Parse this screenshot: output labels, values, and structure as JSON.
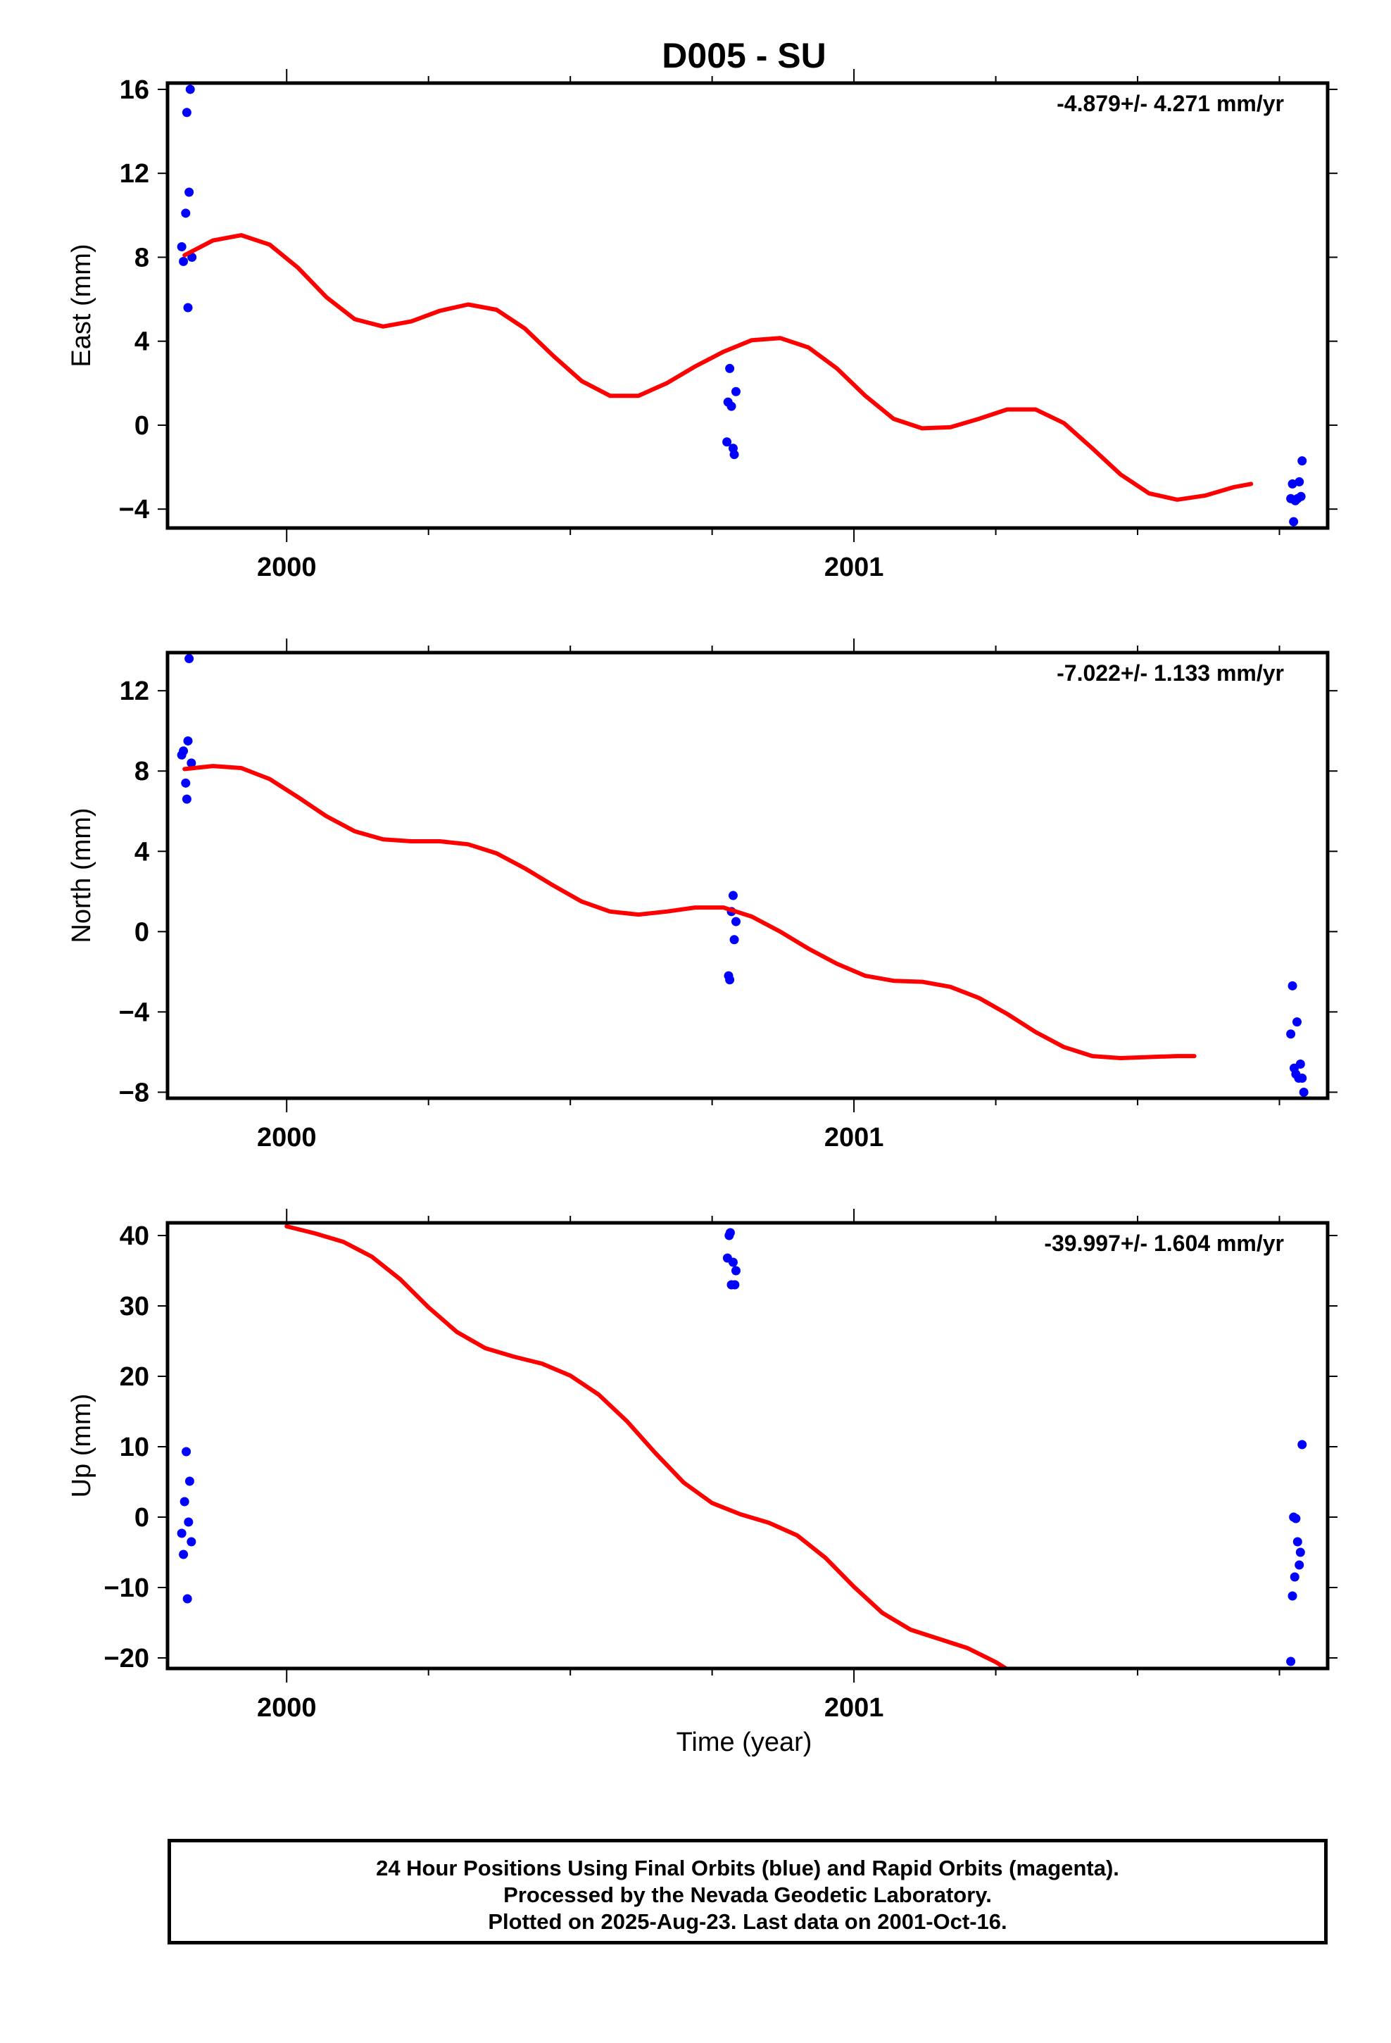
{
  "title": "D005 - SU",
  "xlabel": "Time (year)",
  "footer": {
    "line1": "24 Hour Positions Using Final Orbits (blue) and Rapid Orbits (magenta).",
    "line2": "Processed by the Nevada Geodetic Laboratory.",
    "line3": "Plotted on 2025-Aug-23. Last data on 2001-Oct-16."
  },
  "colors": {
    "data": "#0000ff",
    "model": "#ff0000",
    "axes": "#000000"
  },
  "chart_data": [
    {
      "type": "scatter",
      "ylabel": "East (mm)",
      "rate_text": "-4.879+/- 4.271 mm/yr",
      "xlim": [
        1999.79,
        2001.835
      ],
      "ylim": [
        -4.9,
        16.3
      ],
      "yticks": [
        -4,
        0,
        4,
        8,
        12,
        16
      ],
      "xticks_major": [
        2000,
        2001
      ],
      "points": [
        [
          1999.815,
          8.5
        ],
        [
          1999.818,
          7.8
        ],
        [
          1999.822,
          10.1
        ],
        [
          1999.824,
          14.9
        ],
        [
          1999.826,
          5.6
        ],
        [
          1999.828,
          11.1
        ],
        [
          1999.83,
          16.0
        ],
        [
          1999.833,
          8.0
        ],
        [
          2000.778,
          1.1
        ],
        [
          2000.781,
          2.7
        ],
        [
          2000.784,
          0.9
        ],
        [
          2000.776,
          -0.8
        ],
        [
          2000.787,
          -1.1
        ],
        [
          2000.789,
          -1.4
        ],
        [
          2000.792,
          1.6
        ],
        [
          2001.77,
          -3.5
        ],
        [
          2001.775,
          -4.6
        ],
        [
          2001.778,
          -3.6
        ],
        [
          2001.782,
          -3.5
        ],
        [
          2001.785,
          -2.7
        ],
        [
          2001.788,
          -3.4
        ],
        [
          2001.79,
          -1.7
        ],
        [
          2001.773,
          -2.8
        ]
      ],
      "model": [
        [
          1999.82,
          8.1
        ],
        [
          1999.87,
          8.8
        ],
        [
          1999.92,
          9.05
        ],
        [
          1999.97,
          8.6
        ],
        [
          2000.02,
          7.5
        ],
        [
          2000.07,
          6.1
        ],
        [
          2000.12,
          5.05
        ],
        [
          2000.17,
          4.7
        ],
        [
          2000.22,
          4.95
        ],
        [
          2000.27,
          5.45
        ],
        [
          2000.32,
          5.75
        ],
        [
          2000.37,
          5.5
        ],
        [
          2000.42,
          4.6
        ],
        [
          2000.47,
          3.3
        ],
        [
          2000.52,
          2.1
        ],
        [
          2000.57,
          1.4
        ],
        [
          2000.62,
          1.4
        ],
        [
          2000.67,
          2.0
        ],
        [
          2000.72,
          2.8
        ],
        [
          2000.77,
          3.5
        ],
        [
          2000.82,
          4.05
        ],
        [
          2000.87,
          4.15
        ],
        [
          2000.92,
          3.7
        ],
        [
          2000.97,
          2.7
        ],
        [
          2001.02,
          1.4
        ],
        [
          2001.07,
          0.3
        ],
        [
          2001.12,
          -0.15
        ],
        [
          2001.17,
          -0.1
        ],
        [
          2001.22,
          0.3
        ],
        [
          2001.27,
          0.75
        ],
        [
          2001.32,
          0.75
        ],
        [
          2001.37,
          0.1
        ],
        [
          2001.42,
          -1.1
        ],
        [
          2001.47,
          -2.35
        ],
        [
          2001.52,
          -3.25
        ],
        [
          2001.57,
          -3.55
        ],
        [
          2001.62,
          -3.35
        ],
        [
          2001.67,
          -2.95
        ],
        [
          2001.7,
          -2.8
        ]
      ]
    },
    {
      "type": "scatter",
      "ylabel": "North (mm)",
      "rate_text": "-7.022+/- 1.133 mm/yr",
      "xlim": [
        1999.79,
        2001.835
      ],
      "ylim": [
        -8.3,
        13.9
      ],
      "yticks": [
        -8,
        -4,
        0,
        4,
        8,
        12
      ],
      "xticks_major": [
        2000,
        2001
      ],
      "points": [
        [
          1999.815,
          8.8
        ],
        [
          1999.818,
          9.0
        ],
        [
          1999.822,
          7.4
        ],
        [
          1999.824,
          6.6
        ],
        [
          1999.826,
          9.5
        ],
        [
          1999.828,
          13.6
        ],
        [
          1999.832,
          8.4
        ],
        [
          2000.779,
          -2.2
        ],
        [
          2000.781,
          -2.4
        ],
        [
          2000.784,
          1.0
        ],
        [
          2000.787,
          1.8
        ],
        [
          2000.789,
          -0.4
        ],
        [
          2000.792,
          0.5
        ],
        [
          2001.77,
          -5.1
        ],
        [
          2001.773,
          -2.7
        ],
        [
          2001.776,
          -6.8
        ],
        [
          2001.779,
          -7.1
        ],
        [
          2001.781,
          -4.5
        ],
        [
          2001.784,
          -7.3
        ],
        [
          2001.787,
          -6.6
        ],
        [
          2001.79,
          -7.3
        ],
        [
          2001.793,
          -8.0
        ]
      ],
      "model": [
        [
          1999.82,
          8.1
        ],
        [
          1999.87,
          8.25
        ],
        [
          1999.92,
          8.15
        ],
        [
          1999.97,
          7.6
        ],
        [
          2000.02,
          6.7
        ],
        [
          2000.07,
          5.75
        ],
        [
          2000.12,
          5.0
        ],
        [
          2000.17,
          4.6
        ],
        [
          2000.22,
          4.5
        ],
        [
          2000.27,
          4.5
        ],
        [
          2000.32,
          4.35
        ],
        [
          2000.37,
          3.9
        ],
        [
          2000.42,
          3.15
        ],
        [
          2000.47,
          2.3
        ],
        [
          2000.52,
          1.5
        ],
        [
          2000.57,
          1.0
        ],
        [
          2000.62,
          0.85
        ],
        [
          2000.67,
          1.0
        ],
        [
          2000.72,
          1.2
        ],
        [
          2000.77,
          1.2
        ],
        [
          2000.82,
          0.75
        ],
        [
          2000.87,
          0.0
        ],
        [
          2000.92,
          -0.85
        ],
        [
          2000.97,
          -1.6
        ],
        [
          2001.02,
          -2.2
        ],
        [
          2001.07,
          -2.45
        ],
        [
          2001.12,
          -2.5
        ],
        [
          2001.17,
          -2.75
        ],
        [
          2001.22,
          -3.3
        ],
        [
          2001.27,
          -4.1
        ],
        [
          2001.32,
          -5.0
        ],
        [
          2001.37,
          -5.75
        ],
        [
          2001.42,
          -6.2
        ],
        [
          2001.47,
          -6.3
        ],
        [
          2001.52,
          -6.25
        ],
        [
          2001.57,
          -6.2
        ],
        [
          2001.6,
          -6.2
        ]
      ]
    },
    {
      "type": "scatter",
      "ylabel": "Up (mm)",
      "rate_text": "-39.997+/- 1.604 mm/yr",
      "xlim": [
        1999.79,
        2001.835
      ],
      "ylim": [
        -21.5,
        41.8
      ],
      "yticks": [
        -20,
        -10,
        0,
        10,
        20,
        30,
        40
      ],
      "xticks_major": [
        2000,
        2001
      ],
      "points": [
        [
          1999.815,
          -2.3
        ],
        [
          1999.818,
          -5.3
        ],
        [
          1999.82,
          2.2
        ],
        [
          1999.823,
          9.3
        ],
        [
          1999.825,
          -11.6
        ],
        [
          1999.827,
          -0.7
        ],
        [
          1999.829,
          5.1
        ],
        [
          1999.832,
          -3.5
        ],
        [
          2000.777,
          36.8
        ],
        [
          2000.78,
          40.0
        ],
        [
          2000.782,
          40.4
        ],
        [
          2000.784,
          33.0
        ],
        [
          2000.787,
          36.2
        ],
        [
          2000.79,
          33.0
        ],
        [
          2000.792,
          35.0
        ],
        [
          2001.77,
          -20.5
        ],
        [
          2001.773,
          -11.2
        ],
        [
          2001.775,
          0.0
        ],
        [
          2001.777,
          -8.5
        ],
        [
          2001.779,
          -0.2
        ],
        [
          2001.782,
          -3.5
        ],
        [
          2001.785,
          -6.8
        ],
        [
          2001.787,
          -5.0
        ],
        [
          2001.79,
          10.3
        ]
      ],
      "model": [
        [
          2000.0,
          41.3
        ],
        [
          2000.05,
          40.3
        ],
        [
          2000.1,
          39.1
        ],
        [
          2000.15,
          37.0
        ],
        [
          2000.2,
          33.8
        ],
        [
          2000.25,
          29.8
        ],
        [
          2000.3,
          26.3
        ],
        [
          2000.35,
          24.0
        ],
        [
          2000.4,
          22.8
        ],
        [
          2000.45,
          21.8
        ],
        [
          2000.5,
          20.1
        ],
        [
          2000.55,
          17.4
        ],
        [
          2000.6,
          13.6
        ],
        [
          2000.65,
          9.1
        ],
        [
          2000.7,
          4.9
        ],
        [
          2000.75,
          2.0
        ],
        [
          2000.8,
          0.4
        ],
        [
          2000.85,
          -0.8
        ],
        [
          2000.9,
          -2.6
        ],
        [
          2000.95,
          -5.8
        ],
        [
          2001.0,
          -9.9
        ],
        [
          2001.05,
          -13.6
        ],
        [
          2001.1,
          -16.0
        ],
        [
          2001.15,
          -17.3
        ],
        [
          2001.2,
          -18.6
        ],
        [
          2001.25,
          -20.6
        ],
        [
          2001.27,
          -21.6
        ]
      ]
    }
  ]
}
